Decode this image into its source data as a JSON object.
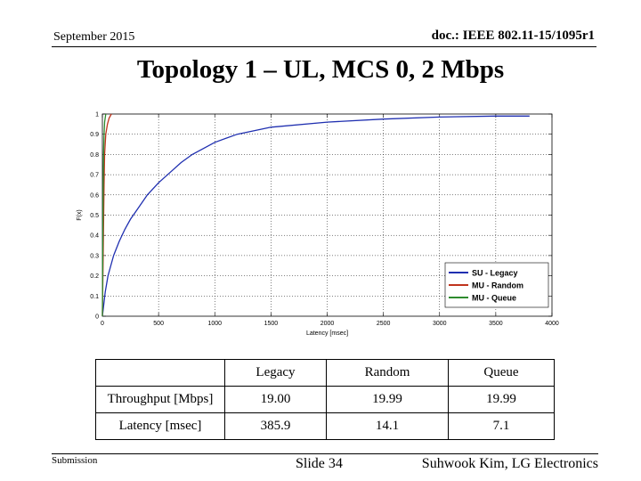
{
  "header": {
    "date": "September 2015",
    "doc": "doc.: IEEE 802.11-15/1095r1"
  },
  "slide_title": "Topology 1 – UL, MCS 0, 2 Mbps",
  "chart_data": {
    "type": "line",
    "title": "",
    "xlabel": "Latency [msec]",
    "ylabel": "F(x)",
    "xlim": [
      0,
      4000
    ],
    "ylim": [
      0,
      1
    ],
    "xticks": [
      0,
      500,
      1000,
      1500,
      2000,
      2500,
      3000,
      3500,
      4000
    ],
    "yticks": [
      0,
      0.1,
      0.2,
      0.3,
      0.4,
      0.5,
      0.6,
      0.7,
      0.8,
      0.9,
      1
    ],
    "grid": true,
    "legend_position": "bottom-right",
    "series": [
      {
        "name": "SU - Legacy",
        "color": "#1f2fb0",
        "x": [
          0,
          25,
          50,
          100,
          150,
          200,
          250,
          300,
          400,
          500,
          600,
          700,
          800,
          1000,
          1200,
          1500,
          2000,
          2500,
          3000,
          3500,
          3800
        ],
        "y": [
          0,
          0.12,
          0.2,
          0.3,
          0.37,
          0.43,
          0.48,
          0.52,
          0.6,
          0.66,
          0.71,
          0.76,
          0.8,
          0.86,
          0.9,
          0.935,
          0.96,
          0.975,
          0.985,
          0.99,
          0.99
        ]
      },
      {
        "name": "MU - Random",
        "color": "#c0341d",
        "x": [
          0,
          5,
          10,
          15,
          20,
          30,
          45,
          60,
          80
        ],
        "y": [
          0,
          0.2,
          0.45,
          0.65,
          0.8,
          0.9,
          0.95,
          0.98,
          1
        ]
      },
      {
        "name": "MU - Queue",
        "color": "#2e8b2e",
        "x": [
          0,
          3,
          6,
          10,
          15,
          20,
          30
        ],
        "y": [
          0,
          0.3,
          0.6,
          0.8,
          0.9,
          0.96,
          1
        ]
      }
    ]
  },
  "table": {
    "header": [
      "",
      "Legacy",
      "Random",
      "Queue"
    ],
    "rows": [
      [
        "Throughput [Mbps]",
        "19.00",
        "19.99",
        "19.99"
      ],
      [
        "Latency [msec]",
        "385.9",
        "14.1",
        "7.1"
      ]
    ]
  },
  "footer": {
    "submission": "Submission",
    "slide": "Slide 34",
    "author": "Suhwook Kim, LG Electronics"
  }
}
